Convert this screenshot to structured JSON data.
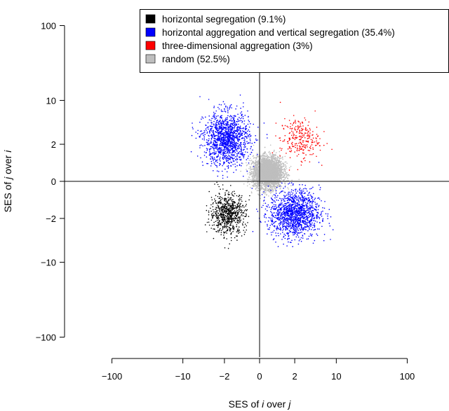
{
  "chart_data": {
    "type": "scatter",
    "title": "",
    "xlabel": "SES of i over j",
    "ylabel": "SES of j over i",
    "scale": "symmetric-log",
    "x_ticks": [
      "−100",
      "−10",
      "−2",
      "0",
      "2",
      "10",
      "100"
    ],
    "x_tick_values": [
      -100,
      -10,
      -2,
      0,
      2,
      10,
      100
    ],
    "y_ticks": [
      "100",
      "10",
      "2",
      "0",
      "−2",
      "−10",
      "−100"
    ],
    "y_tick_values": [
      100,
      10,
      2,
      0,
      -2,
      -10,
      -100
    ],
    "reference_lines": {
      "x": 0,
      "y": 0
    },
    "legend_position": "top-right",
    "series": [
      {
        "name": "horizontal segregation (9.1%)",
        "color": "#000000",
        "clusters": [
          {
            "center": [
              -1.7,
              -1.6
            ],
            "spread": [
              2.5,
              3.0
            ],
            "count": 700
          }
        ]
      },
      {
        "name": "horizontal aggregation and vertical segregation (35.4%)",
        "color": "#0000ff",
        "clusters": [
          {
            "center": [
              -1.8,
              2.5
            ],
            "spread": [
              4.0,
              5.0
            ],
            "count": 1350
          },
          {
            "center": [
              2.0,
              -1.6
            ],
            "spread": [
              5.0,
              4.0
            ],
            "count": 1350
          }
        ]
      },
      {
        "name": "three-dimensional aggregation (3%)",
        "color": "#ff0000",
        "clusters": [
          {
            "center": [
              2.5,
              2.5
            ],
            "spread": [
              3.0,
              3.0
            ],
            "count": 260
          }
        ]
      },
      {
        "name": "random (52.5%)",
        "color": "#bebebe",
        "clusters": [
          {
            "center": [
              0.3,
              0.3
            ],
            "spread": [
              1.8,
              1.8
            ],
            "count": 3800
          }
        ]
      }
    ]
  }
}
